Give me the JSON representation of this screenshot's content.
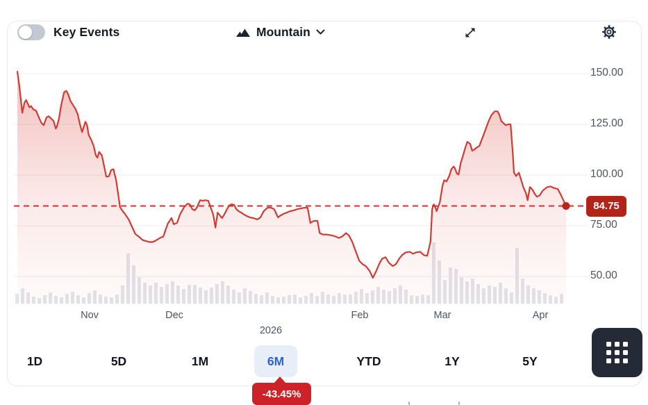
{
  "header": {
    "key_events_label": "Key Events",
    "chart_type_label": "Mountain"
  },
  "last_price_badge": "84.75",
  "change_badge": "-43.45%",
  "range_buttons": [
    {
      "label": "1D",
      "active": false
    },
    {
      "label": "5D",
      "active": false
    },
    {
      "label": "1M",
      "active": false
    },
    {
      "label": "6M",
      "active": true
    },
    {
      "label": "YTD",
      "active": false
    },
    {
      "label": "1Y",
      "active": false
    },
    {
      "label": "5Y",
      "active": false
    }
  ],
  "colors": {
    "line": "#d23a32",
    "dashed": "#cc3328",
    "dot": "#bf2318",
    "area_top": "rgba(211,47,38,0.30)",
    "area_mid": "rgba(211,47,38,0.10)",
    "area_bottom": "rgba(211,47,38,0.02)",
    "price_badge_bg": "#b22318",
    "change_badge_bg": "#cd2328",
    "active_range_bg": "#e8eef8",
    "active_range_text": "#2e62c8",
    "volume_bar": "#e2e5ea",
    "gridline": "#e9ebef",
    "grid_button_bg": "#252b36",
    "toggle_track": "#c3c9d3"
  },
  "chart_data": {
    "type": "area",
    "subtype": "mountain-with-volume",
    "last_price": 84.75,
    "period_change_pct": -43.45,
    "selected_range": "6M",
    "grid": true,
    "ylim": [
      45,
      155
    ],
    "y_ticks": [
      {
        "label": "150.00",
        "value": 150
      },
      {
        "label": "125.00",
        "value": 125
      },
      {
        "label": "100.00",
        "value": 100
      },
      {
        "label": "75.00",
        "value": 75
      },
      {
        "label": "50.00",
        "value": 50
      }
    ],
    "x_ticks": [
      {
        "label": "Nov",
        "f": 0.132,
        "row": 1
      },
      {
        "label": "Dec",
        "f": 0.286,
        "row": 1
      },
      {
        "label": "2026",
        "f": 0.462,
        "row": 2
      },
      {
        "label": "Feb",
        "f": 0.624,
        "row": 1
      },
      {
        "label": "Mar",
        "f": 0.775,
        "row": 1
      },
      {
        "label": "Apr",
        "f": 0.953,
        "row": 1
      }
    ],
    "series": [
      {
        "name": "price",
        "points": [
          [
            0,
            151
          ],
          [
            0.004,
            143
          ],
          [
            0.006,
            138
          ],
          [
            0.009,
            130.7
          ],
          [
            0.013,
            135.8
          ],
          [
            0.016,
            137
          ],
          [
            0.022,
            133.4
          ],
          [
            0.025,
            134
          ],
          [
            0.029,
            132.4
          ],
          [
            0.034,
            131.7
          ],
          [
            0.041,
            127.3
          ],
          [
            0.044,
            125.6
          ],
          [
            0.048,
            124.6
          ],
          [
            0.053,
            128.4
          ],
          [
            0.057,
            129
          ],
          [
            0.061,
            128
          ],
          [
            0.066,
            126.7
          ],
          [
            0.07,
            122.9
          ],
          [
            0.072,
            123.9
          ],
          [
            0.076,
            128
          ],
          [
            0.08,
            134.7
          ],
          [
            0.085,
            140.8
          ],
          [
            0.089,
            141.5
          ],
          [
            0.092,
            140.2
          ],
          [
            0.097,
            136.4
          ],
          [
            0.101,
            134.7
          ],
          [
            0.105,
            133
          ],
          [
            0.11,
            130
          ],
          [
            0.114,
            125
          ],
          [
            0.118,
            121.2
          ],
          [
            0.12,
            122.9
          ],
          [
            0.124,
            126.3
          ],
          [
            0.127,
            124.6
          ],
          [
            0.13,
            119.8
          ],
          [
            0.135,
            117.1
          ],
          [
            0.139,
            114.4
          ],
          [
            0.143,
            109.7
          ],
          [
            0.146,
            108.6
          ],
          [
            0.149,
            111.4
          ],
          [
            0.154,
            109.7
          ],
          [
            0.158,
            104.6
          ],
          [
            0.162,
            99.2
          ],
          [
            0.167,
            99.5
          ],
          [
            0.171,
            102.5
          ],
          [
            0.175,
            102.9
          ],
          [
            0.18,
            97.5
          ],
          [
            0.184,
            90
          ],
          [
            0.187,
            84.2
          ],
          [
            0.192,
            82.2
          ],
          [
            0.196,
            80.9
          ],
          [
            0.203,
            78
          ],
          [
            0.209,
            74.5
          ],
          [
            0.215,
            71
          ],
          [
            0.222,
            69.5
          ],
          [
            0.228,
            68
          ],
          [
            0.234,
            67.5
          ],
          [
            0.241,
            67
          ],
          [
            0.247,
            67
          ],
          [
            0.254,
            68
          ],
          [
            0.26,
            69
          ],
          [
            0.266,
            69.7
          ],
          [
            0.274,
            76
          ],
          [
            0.281,
            78.8
          ],
          [
            0.285,
            75.8
          ],
          [
            0.291,
            76.4
          ],
          [
            0.297,
            80.9
          ],
          [
            0.304,
            84.2
          ],
          [
            0.31,
            85.9
          ],
          [
            0.314,
            85.6
          ],
          [
            0.319,
            83.2
          ],
          [
            0.323,
            82.6
          ],
          [
            0.327,
            83.9
          ],
          [
            0.333,
            87.6
          ],
          [
            0.338,
            87.3
          ],
          [
            0.342,
            87.6
          ],
          [
            0.348,
            87.3
          ],
          [
            0.352,
            84.2
          ],
          [
            0.357,
            80.5
          ],
          [
            0.361,
            74.1
          ],
          [
            0.365,
            81.5
          ],
          [
            0.37,
            79.8
          ],
          [
            0.373,
            78.8
          ],
          [
            0.377,
            80.5
          ],
          [
            0.382,
            83.2
          ],
          [
            0.386,
            84.9
          ],
          [
            0.39,
            85.6
          ],
          [
            0.395,
            85.3
          ],
          [
            0.399,
            83.2
          ],
          [
            0.403,
            82.2
          ],
          [
            0.408,
            81.5
          ],
          [
            0.411,
            80.9
          ],
          [
            0.418,
            79.8
          ],
          [
            0.424,
            79.1
          ],
          [
            0.43,
            78.8
          ],
          [
            0.437,
            78.1
          ],
          [
            0.443,
            79.1
          ],
          [
            0.449,
            82.2
          ],
          [
            0.456,
            83.9
          ],
          [
            0.462,
            83.9
          ],
          [
            0.468,
            83.2
          ],
          [
            0.475,
            79.1
          ],
          [
            0.478,
            79.8
          ],
          [
            0.485,
            80.9
          ],
          [
            0.491,
            81.5
          ],
          [
            0.497,
            82.2
          ],
          [
            0.504,
            82.6
          ],
          [
            0.51,
            83.2
          ],
          [
            0.516,
            83.5
          ],
          [
            0.523,
            83.9
          ],
          [
            0.529,
            83.9
          ],
          [
            0.534,
            76.4
          ],
          [
            0.54,
            77.4
          ],
          [
            0.547,
            77.4
          ],
          [
            0.551,
            71.4
          ],
          [
            0.557,
            70.7
          ],
          [
            0.563,
            70.7
          ],
          [
            0.572,
            70.3
          ],
          [
            0.58,
            69.7
          ],
          [
            0.586,
            69
          ],
          [
            0.592,
            69.7
          ],
          [
            0.599,
            71.4
          ],
          [
            0.604,
            70.3
          ],
          [
            0.61,
            67.3
          ],
          [
            0.616,
            62.9
          ],
          [
            0.623,
            57.8
          ],
          [
            0.629,
            56.1
          ],
          [
            0.635,
            55.1
          ],
          [
            0.642,
            52.7
          ],
          [
            0.648,
            49.3
          ],
          [
            0.654,
            52.7
          ],
          [
            0.661,
            57.1
          ],
          [
            0.665,
            58.8
          ],
          [
            0.671,
            59.5
          ],
          [
            0.677,
            56.8
          ],
          [
            0.684,
            55.1
          ],
          [
            0.69,
            56.1
          ],
          [
            0.696,
            58.8
          ],
          [
            0.701,
            60.5
          ],
          [
            0.708,
            61.9
          ],
          [
            0.715,
            62.2
          ],
          [
            0.721,
            61.2
          ],
          [
            0.727,
            61.9
          ],
          [
            0.734,
            62.2
          ],
          [
            0.741,
            60.5
          ],
          [
            0.747,
            60.2
          ],
          [
            0.753,
            67.3
          ],
          [
            0.756,
            83.2
          ],
          [
            0.759,
            85.6
          ],
          [
            0.762,
            83.9
          ],
          [
            0.764,
            82.2
          ],
          [
            0.77,
            86.6
          ],
          [
            0.775,
            95.1
          ],
          [
            0.778,
            97.5
          ],
          [
            0.782,
            96.8
          ],
          [
            0.787,
            99.5
          ],
          [
            0.791,
            102.9
          ],
          [
            0.795,
            104.2
          ],
          [
            0.797,
            103.6
          ],
          [
            0.801,
            100.8
          ],
          [
            0.804,
            100.2
          ],
          [
            0.808,
            105.9
          ],
          [
            0.813,
            110.3
          ],
          [
            0.816,
            113.1
          ],
          [
            0.82,
            116.4
          ],
          [
            0.825,
            115.4
          ],
          [
            0.829,
            112
          ],
          [
            0.833,
            112.7
          ],
          [
            0.838,
            113.7
          ],
          [
            0.842,
            114.4
          ],
          [
            0.852,
            121.5
          ],
          [
            0.858,
            126
          ],
          [
            0.864,
            129.6
          ],
          [
            0.87,
            131.4
          ],
          [
            0.875,
            131.4
          ],
          [
            0.878,
            130
          ],
          [
            0.882,
            126.6
          ],
          [
            0.886,
            125.6
          ],
          [
            0.89,
            124.6
          ],
          [
            0.894,
            125
          ],
          [
            0.899,
            125
          ],
          [
            0.903,
            110.3
          ],
          [
            0.905,
            101.2
          ],
          [
            0.909,
            99.5
          ],
          [
            0.914,
            101.2
          ],
          [
            0.918,
            97.8
          ],
          [
            0.922,
            94.1
          ],
          [
            0.927,
            91
          ],
          [
            0.93,
            87.6
          ],
          [
            0.934,
            94.1
          ],
          [
            0.939,
            92.7
          ],
          [
            0.943,
            90.7
          ],
          [
            0.947,
            89.3
          ],
          [
            0.952,
            90
          ],
          [
            0.956,
            91.7
          ],
          [
            0.959,
            92.7
          ],
          [
            0.966,
            94.1
          ],
          [
            0.972,
            94.4
          ],
          [
            0.977,
            93.7
          ],
          [
            0.981,
            93.4
          ],
          [
            0.985,
            93.1
          ],
          [
            0.991,
            90
          ],
          [
            1,
            84.75
          ]
        ]
      }
    ],
    "volume_bars": [
      14,
      22,
      16,
      10,
      8,
      12,
      16,
      11,
      9,
      14,
      17,
      12,
      9,
      15,
      19,
      13,
      10,
      9,
      13,
      26,
      72,
      55,
      38,
      30,
      26,
      30,
      24,
      28,
      32,
      26,
      21,
      27,
      27,
      23,
      19,
      23,
      28,
      32,
      26,
      20,
      16,
      22,
      18,
      14,
      12,
      16,
      11,
      9,
      10,
      12,
      13,
      9,
      11,
      15,
      11,
      17,
      13,
      11,
      15,
      13,
      13,
      17,
      21,
      15,
      19,
      24,
      20,
      18,
      22,
      26,
      20,
      12,
      11,
      13,
      12,
      88,
      62,
      34,
      52,
      50,
      38,
      32,
      36,
      28,
      22,
      26,
      24,
      30,
      22,
      16,
      80,
      36,
      26,
      22,
      19,
      15,
      12,
      10,
      14
    ]
  }
}
